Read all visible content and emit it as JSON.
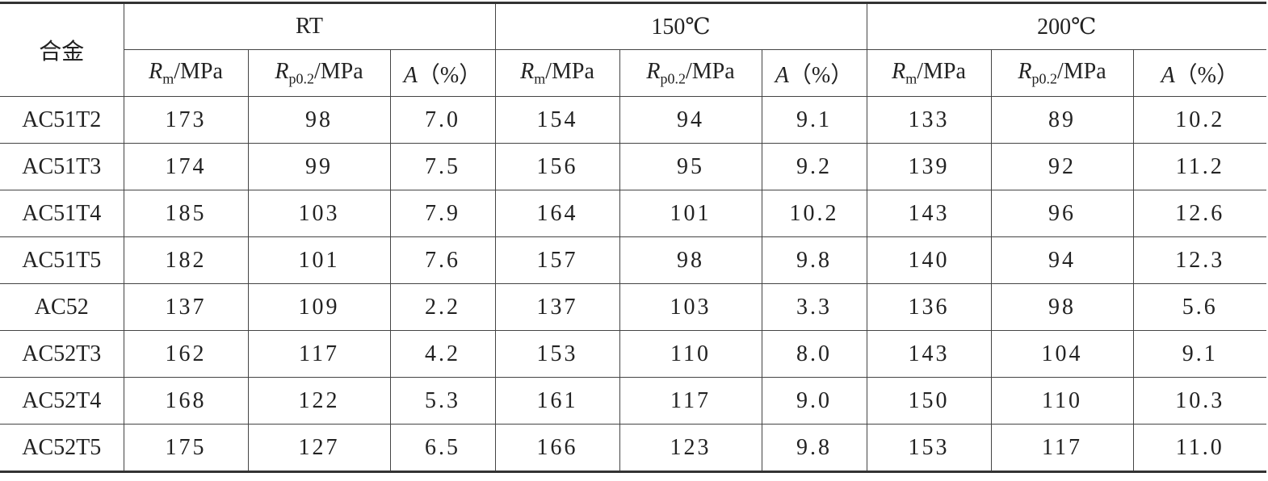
{
  "table": {
    "header": {
      "alloy": "合金",
      "groups": [
        {
          "name": "RT",
          "columns": [
            {
              "symbol": "R",
              "sub": "m",
              "unit": "/MPa"
            },
            {
              "symbol": "R",
              "sub": "p0.2",
              "unit": "/MPa"
            },
            {
              "symbol": "A",
              "unit": "（%）"
            }
          ]
        },
        {
          "name": "150℃",
          "columns": [
            {
              "symbol": "R",
              "sub": "m",
              "unit": "/MPa"
            },
            {
              "symbol": "R",
              "sub": "p0.2",
              "unit": "/MPa"
            },
            {
              "symbol": "A",
              "unit": "（%）"
            }
          ]
        },
        {
          "name": "200℃",
          "columns": [
            {
              "symbol": "R",
              "sub": "m",
              "unit": "/MPa"
            },
            {
              "symbol": "R",
              "sub": "p0.2",
              "unit": "/MPa"
            },
            {
              "symbol": "A",
              "unit": "（%）"
            }
          ]
        }
      ]
    },
    "rows": [
      {
        "alloy": "AC51T2",
        "cells": [
          "173",
          "98",
          "7.0",
          "154",
          "94",
          "9.1",
          "133",
          "89",
          "10.2"
        ]
      },
      {
        "alloy": "AC51T3",
        "cells": [
          "174",
          "99",
          "7.5",
          "156",
          "95",
          "9.2",
          "139",
          "92",
          "11.2"
        ]
      },
      {
        "alloy": "AC51T4",
        "cells": [
          "185",
          "103",
          "7.9",
          "164",
          "101",
          "10.2",
          "143",
          "96",
          "12.6"
        ]
      },
      {
        "alloy": "AC51T5",
        "cells": [
          "182",
          "101",
          "7.6",
          "157",
          "98",
          "9.8",
          "140",
          "94",
          "12.3"
        ]
      },
      {
        "alloy": "AC52",
        "cells": [
          "137",
          "109",
          "2.2",
          "137",
          "103",
          "3.3",
          "136",
          "98",
          "5.6"
        ]
      },
      {
        "alloy": "AC52T3",
        "cells": [
          "162",
          "117",
          "4.2",
          "153",
          "110",
          "8.0",
          "143",
          "104",
          "9.1"
        ]
      },
      {
        "alloy": "AC52T4",
        "cells": [
          "168",
          "122",
          "5.3",
          "161",
          "117",
          "9.0",
          "150",
          "110",
          "10.3"
        ]
      },
      {
        "alloy": "AC52T5",
        "cells": [
          "175",
          "127",
          "6.5",
          "166",
          "123",
          "9.8",
          "153",
          "117",
          "11.0"
        ]
      }
    ]
  }
}
